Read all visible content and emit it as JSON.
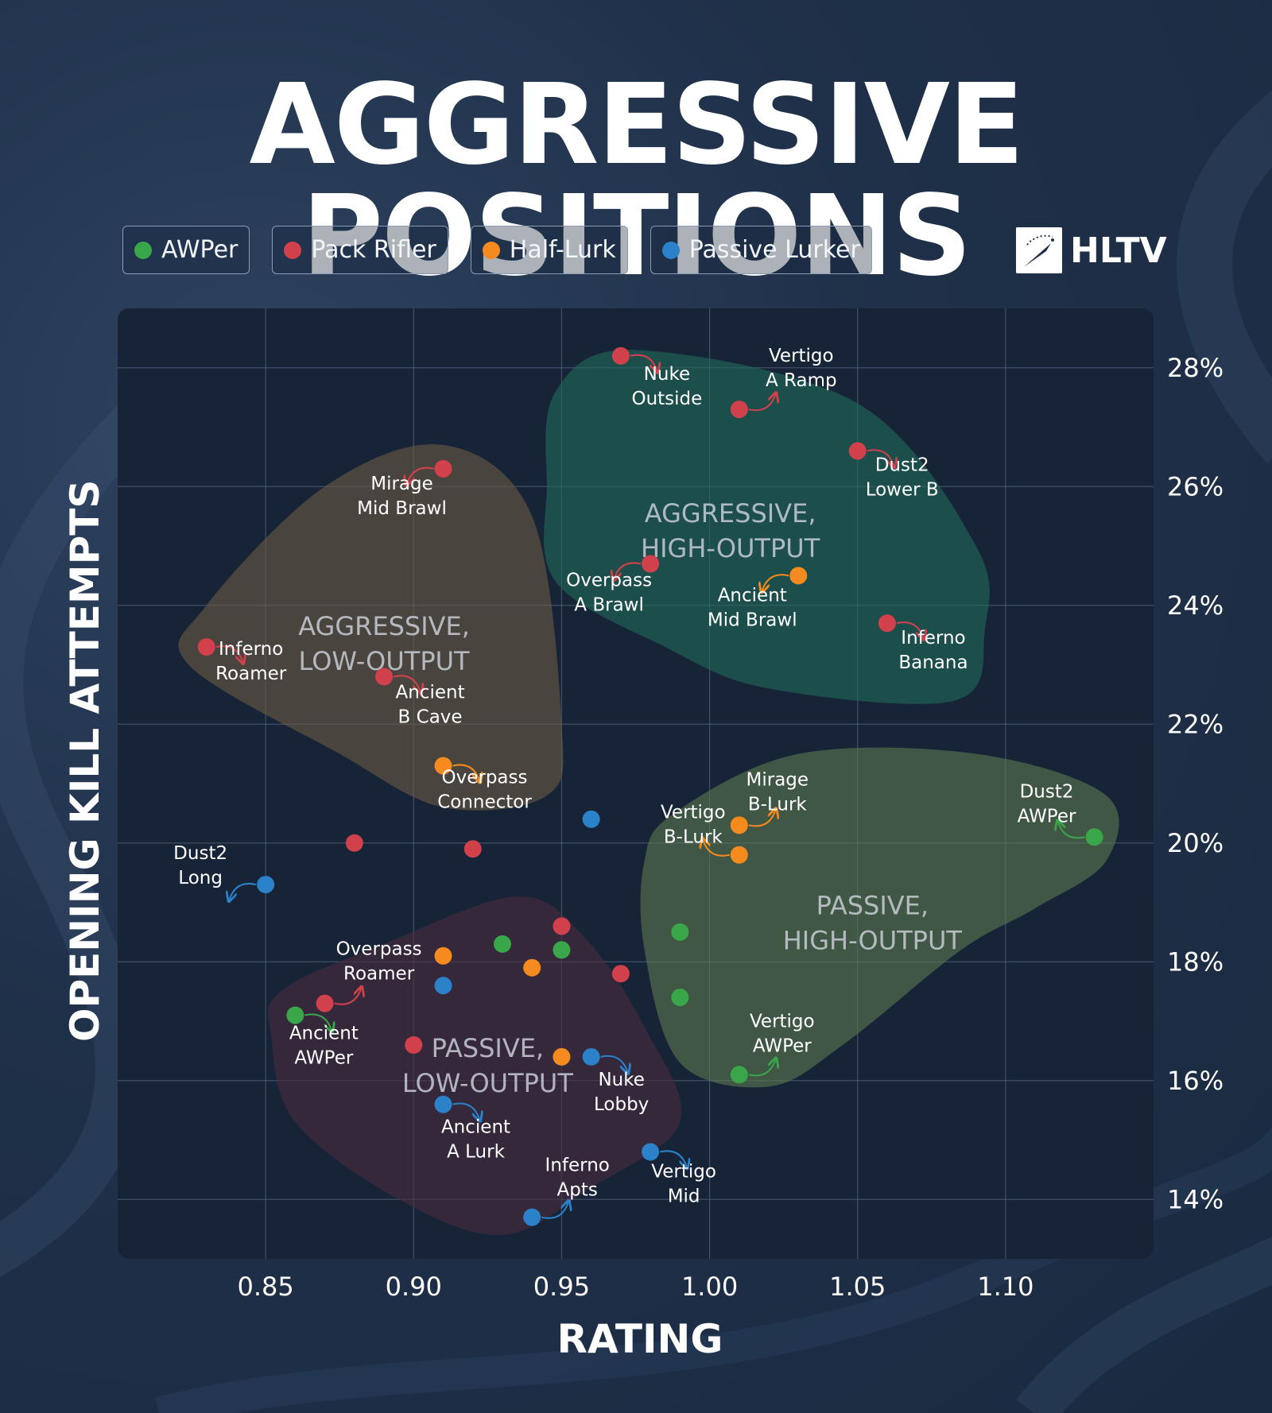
{
  "title": "AGGRESSIVE POSITIONS",
  "brand": {
    "name": "HLTV"
  },
  "legend": [
    {
      "label": "AWPer",
      "color": "#3aa64a"
    },
    {
      "label": "Pack Rifler",
      "color": "#d0414b"
    },
    {
      "label": "Half-Lurk",
      "color": "#f58a1f"
    },
    {
      "label": "Passive Lurker",
      "color": "#2b82c9"
    }
  ],
  "chart_data": {
    "type": "scatter",
    "xlabel": "RATING",
    "ylabel": "OPENING KILL ATTEMPTS",
    "xlim": [
      0.8,
      1.15
    ],
    "ylim": [
      13,
      29
    ],
    "x_ticks": [
      "0.85",
      "0.90",
      "0.95",
      "1.00",
      "1.05",
      "1.10"
    ],
    "y_ticks": [
      "14%",
      "16%",
      "18%",
      "20%",
      "22%",
      "24%",
      "26%",
      "28%"
    ],
    "grid": true,
    "legend_position": "top-left",
    "regions": [
      {
        "label": [
          "AGGRESSIVE,",
          "HIGH-OUTPUT"
        ],
        "color": "#1f6b5a"
      },
      {
        "label": [
          "AGGRESSIVE,",
          "LOW-OUTPUT"
        ],
        "color": "#6b5a43"
      },
      {
        "label": [
          "PASSIVE,",
          "HIGH-OUTPUT"
        ],
        "color": "#5d7a4e"
      },
      {
        "label": [
          "PASSIVE,",
          "LOW-OUTPUT"
        ],
        "color": "#4a2b3c"
      }
    ],
    "points": [
      {
        "x": 0.97,
        "y": 28.2,
        "role": "Pack Rifler",
        "label": [
          "Nuke",
          "Outside"
        ]
      },
      {
        "x": 1.01,
        "y": 27.3,
        "role": "Pack Rifler",
        "label": [
          "Vertigo",
          "A Ramp"
        ]
      },
      {
        "x": 1.05,
        "y": 26.6,
        "role": "Pack Rifler",
        "label": [
          "Dust2",
          "Lower B"
        ]
      },
      {
        "x": 0.91,
        "y": 26.3,
        "role": "Pack Rifler",
        "label": [
          "Mirage",
          "Mid Brawl"
        ]
      },
      {
        "x": 0.98,
        "y": 24.7,
        "role": "Pack Rifler",
        "label": [
          "Overpass",
          "A Brawl"
        ]
      },
      {
        "x": 1.03,
        "y": 24.5,
        "role": "Half-Lurk",
        "label": [
          "Ancient",
          "Mid Brawl"
        ]
      },
      {
        "x": 1.06,
        "y": 23.7,
        "role": "Pack Rifler",
        "label": [
          "Inferno",
          "Banana"
        ]
      },
      {
        "x": 0.83,
        "y": 23.3,
        "role": "Pack Rifler",
        "label": [
          "Inferno",
          "Roamer"
        ]
      },
      {
        "x": 0.89,
        "y": 22.8,
        "role": "Pack Rifler",
        "label": [
          "Ancient",
          "B Cave"
        ]
      },
      {
        "x": 0.91,
        "y": 21.3,
        "role": "Half-Lurk",
        "label": [
          "Overpass",
          "Connector"
        ]
      },
      {
        "x": 0.96,
        "y": 20.4,
        "role": "Passive Lurker",
        "label": []
      },
      {
        "x": 1.01,
        "y": 20.3,
        "role": "Half-Lurk",
        "label": [
          "Mirage",
          "B-Lurk"
        ]
      },
      {
        "x": 1.01,
        "y": 19.8,
        "role": "Half-Lurk",
        "label": [
          "Vertigo",
          "B-Lurk"
        ]
      },
      {
        "x": 1.13,
        "y": 20.1,
        "role": "AWPer",
        "label": [
          "Dust2",
          "AWPer"
        ]
      },
      {
        "x": 0.88,
        "y": 20.0,
        "role": "Pack Rifler",
        "label": []
      },
      {
        "x": 0.92,
        "y": 19.9,
        "role": "Pack Rifler",
        "label": []
      },
      {
        "x": 0.85,
        "y": 19.3,
        "role": "Passive Lurker",
        "label": [
          "Dust2",
          "Long"
        ]
      },
      {
        "x": 0.95,
        "y": 18.6,
        "role": "Pack Rifler",
        "label": []
      },
      {
        "x": 0.99,
        "y": 18.5,
        "role": "AWPer",
        "label": []
      },
      {
        "x": 0.93,
        "y": 18.3,
        "role": "AWPer",
        "label": []
      },
      {
        "x": 0.95,
        "y": 18.2,
        "role": "AWPer",
        "label": []
      },
      {
        "x": 0.91,
        "y": 18.1,
        "role": "Half-Lurk",
        "label": []
      },
      {
        "x": 0.94,
        "y": 17.9,
        "role": "Half-Lurk",
        "label": []
      },
      {
        "x": 0.97,
        "y": 17.8,
        "role": "Pack Rifler",
        "label": []
      },
      {
        "x": 0.91,
        "y": 17.6,
        "role": "Passive Lurker",
        "label": []
      },
      {
        "x": 0.99,
        "y": 17.4,
        "role": "AWPer",
        "label": []
      },
      {
        "x": 0.87,
        "y": 17.3,
        "role": "Pack Rifler",
        "label": [
          "Overpass",
          "Roamer"
        ]
      },
      {
        "x": 0.86,
        "y": 17.1,
        "role": "AWPer",
        "label": [
          "Ancient",
          "AWPer"
        ]
      },
      {
        "x": 0.9,
        "y": 16.6,
        "role": "Pack Rifler",
        "label": []
      },
      {
        "x": 0.95,
        "y": 16.4,
        "role": "Half-Lurk",
        "label": []
      },
      {
        "x": 0.96,
        "y": 16.4,
        "role": "Passive Lurker",
        "label": [
          "Nuke",
          "Lobby"
        ]
      },
      {
        "x": 1.01,
        "y": 16.1,
        "role": "AWPer",
        "label": [
          "Vertigo",
          "AWPer"
        ]
      },
      {
        "x": 0.91,
        "y": 15.6,
        "role": "Passive Lurker",
        "label": [
          "Ancient",
          "A Lurk"
        ]
      },
      {
        "x": 0.98,
        "y": 14.8,
        "role": "Passive Lurker",
        "label": [
          "Vertigo",
          "Mid"
        ]
      },
      {
        "x": 0.94,
        "y": 13.7,
        "role": "Passive Lurker",
        "label": [
          "Inferno",
          "Apts"
        ]
      }
    ]
  }
}
